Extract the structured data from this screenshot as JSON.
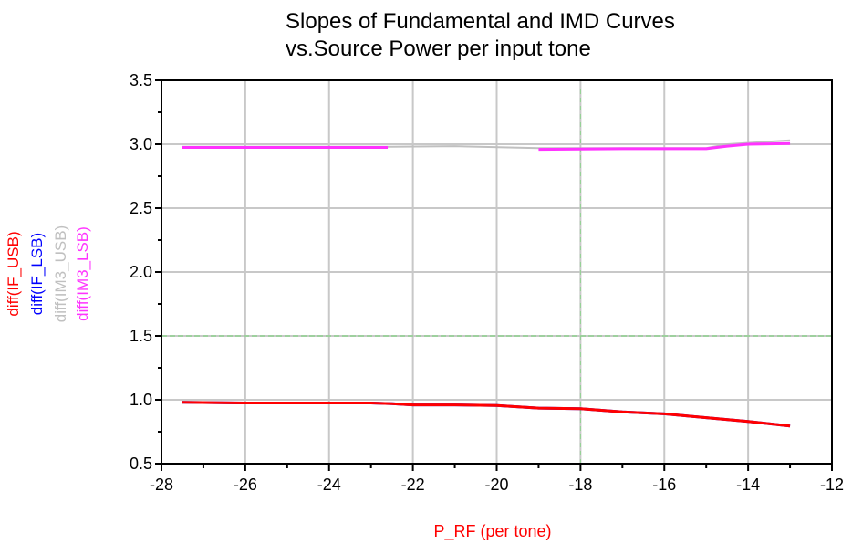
{
  "chart_data": {
    "type": "line",
    "title": [
      "Slopes of Fundamental and IMD Curves",
      "vs.Source Power per input tone"
    ],
    "xlabel": "P_RF (per tone)",
    "xlim": [
      -28,
      -12
    ],
    "ylim": [
      0.5,
      3.5
    ],
    "x_ticks": [
      "-28",
      "-26",
      "-24",
      "-22",
      "-20",
      "-18",
      "-16",
      "-14",
      "-12"
    ],
    "y_ticks": [
      "0.5",
      "1.0",
      "1.5",
      "2.0",
      "2.5",
      "3.0",
      "3.5"
    ],
    "grid": true,
    "colors": {
      "grid": "#c8c8c8",
      "frame": "#000000",
      "dashed_line": "#8fd28f"
    },
    "series": [
      {
        "name": "diff(IF_USB)",
        "color": "#ff0000",
        "x": [
          -27.5,
          -26,
          -25,
          -24,
          -23,
          -22.5,
          -22,
          -21,
          -20,
          -19,
          -18,
          -17,
          -16,
          -15,
          -14,
          -13
        ],
        "y": [
          0.98,
          0.975,
          0.975,
          0.975,
          0.975,
          0.97,
          0.96,
          0.96,
          0.955,
          0.935,
          0.93,
          0.905,
          0.89,
          0.86,
          0.83,
          0.795
        ]
      },
      {
        "name": "diff(IF_LSB)",
        "color": "#0000ff",
        "x": [
          -27.5,
          -26,
          -25,
          -24,
          -23,
          -22.5,
          -22,
          -21,
          -20,
          -19,
          -18,
          -17,
          -16,
          -15,
          -14,
          -13
        ],
        "y": [
          0.98,
          0.975,
          0.975,
          0.975,
          0.975,
          0.97,
          0.96,
          0.96,
          0.955,
          0.935,
          0.93,
          0.905,
          0.89,
          0.86,
          0.83,
          0.795
        ]
      },
      {
        "name": "diff(IM3_USB)",
        "color": "#c0c0c0",
        "x": [
          -27.5,
          -25,
          -22.5,
          -21,
          -19,
          -17,
          -15,
          -14.5,
          -13
        ],
        "y": [
          2.98,
          2.98,
          2.98,
          2.985,
          2.97,
          2.97,
          2.97,
          3.0,
          3.03
        ]
      },
      {
        "name": "diff(IM3_LSB)",
        "color": "#ff33ff",
        "segments": [
          {
            "x": [
              -27.5,
              -26,
              -24,
              -22.6
            ],
            "y": [
              2.975,
              2.975,
              2.975,
              2.975
            ]
          },
          {
            "x": [
              -19.0,
              -17,
              -15,
              -14.5,
              -14,
              -13
            ],
            "y": [
              2.96,
              2.965,
              2.965,
              2.985,
              3.0,
              3.005
            ]
          }
        ]
      }
    ],
    "reference_line": {
      "y": 1.5,
      "style": "dashed"
    }
  }
}
